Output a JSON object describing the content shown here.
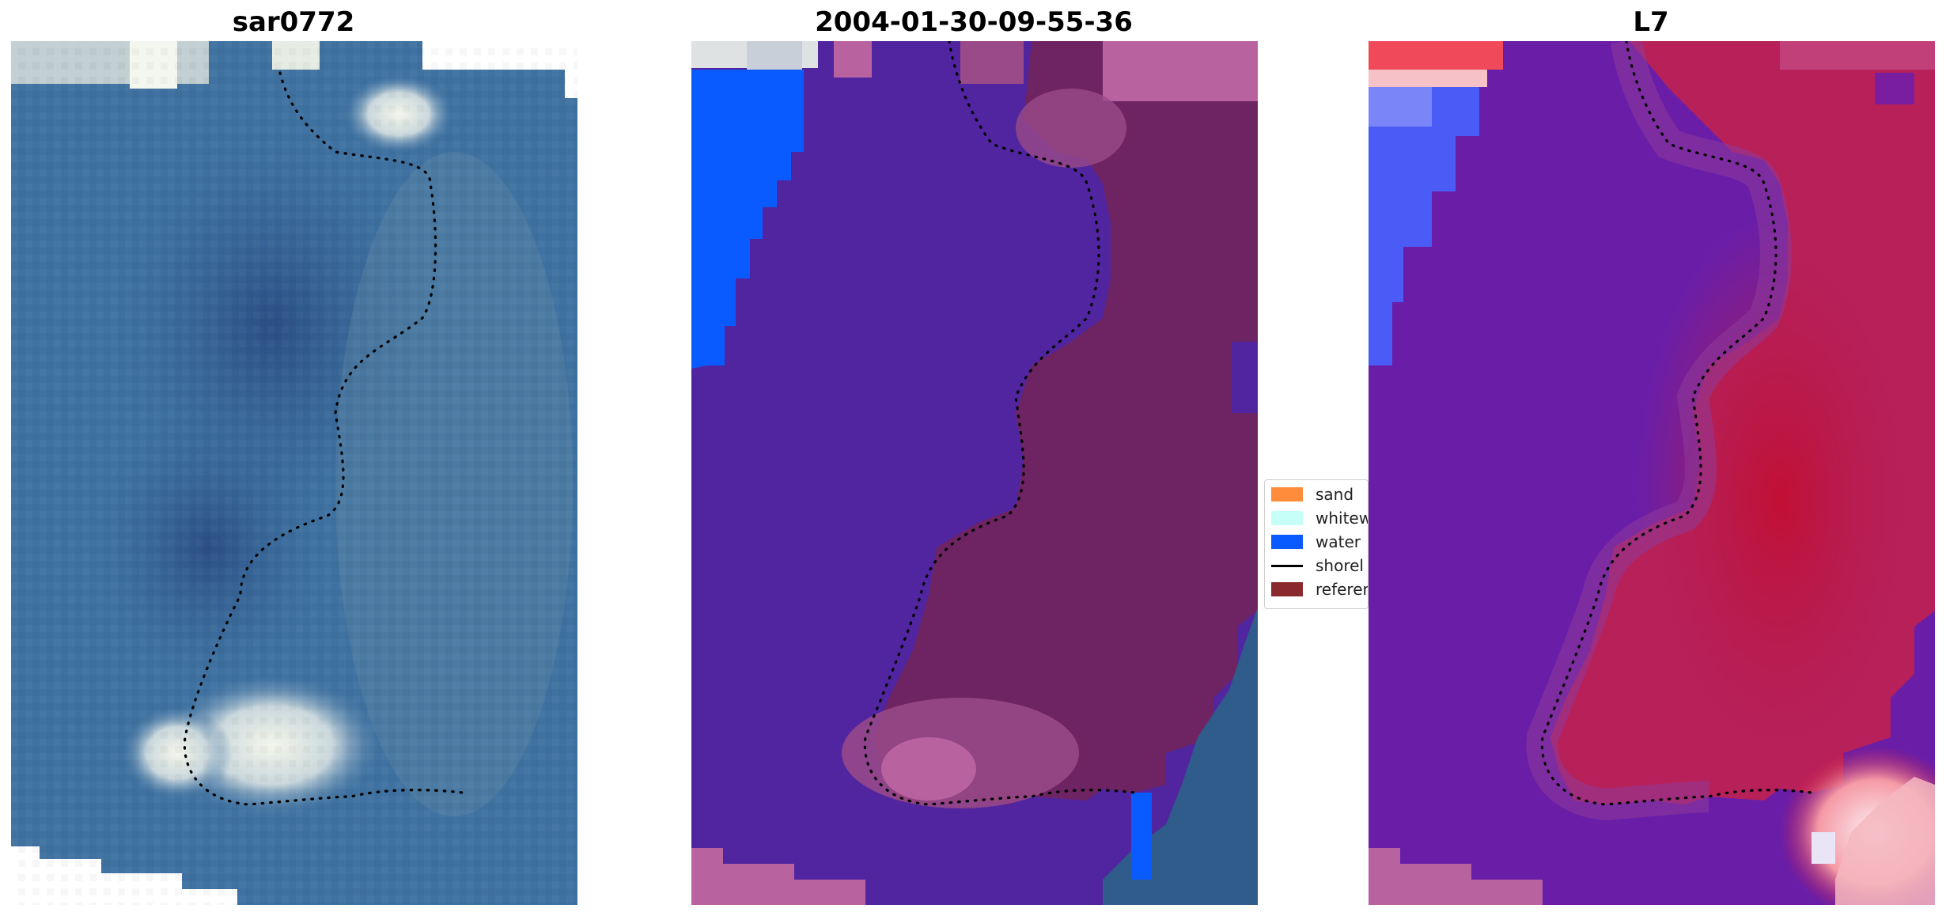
{
  "panels": [
    {
      "title": "sar0772"
    },
    {
      "title": "2004-01-30-09-55-36"
    },
    {
      "title": "L7"
    }
  ],
  "legend": {
    "items": [
      {
        "label": "sand",
        "color": "#ff8c3a",
        "kind": "patch"
      },
      {
        "label": "whitew",
        "color": "#c6fff8",
        "kind": "patch"
      },
      {
        "label": "water",
        "color": "#0a5bff",
        "kind": "patch"
      },
      {
        "label": "shorel",
        "color": "#000000",
        "kind": "line"
      },
      {
        "label": "referer",
        "color": "#8b2a2e",
        "kind": "patch"
      }
    ]
  },
  "colors": {
    "rgb_water": "#3d6f9c",
    "rgb_dark_water": "#2e5a8e",
    "rgb_foam": "#e8eee6",
    "class_water_purple": "#5125a0",
    "class_reference": "#6e2462",
    "class_pink_edge": "#b862a0",
    "class_blue_water": "#0a5bff",
    "index_purple": "#6a1ea8",
    "index_red": "#c8143c",
    "index_white": "#f2e8f0",
    "shoreline_dots": "#000000"
  }
}
